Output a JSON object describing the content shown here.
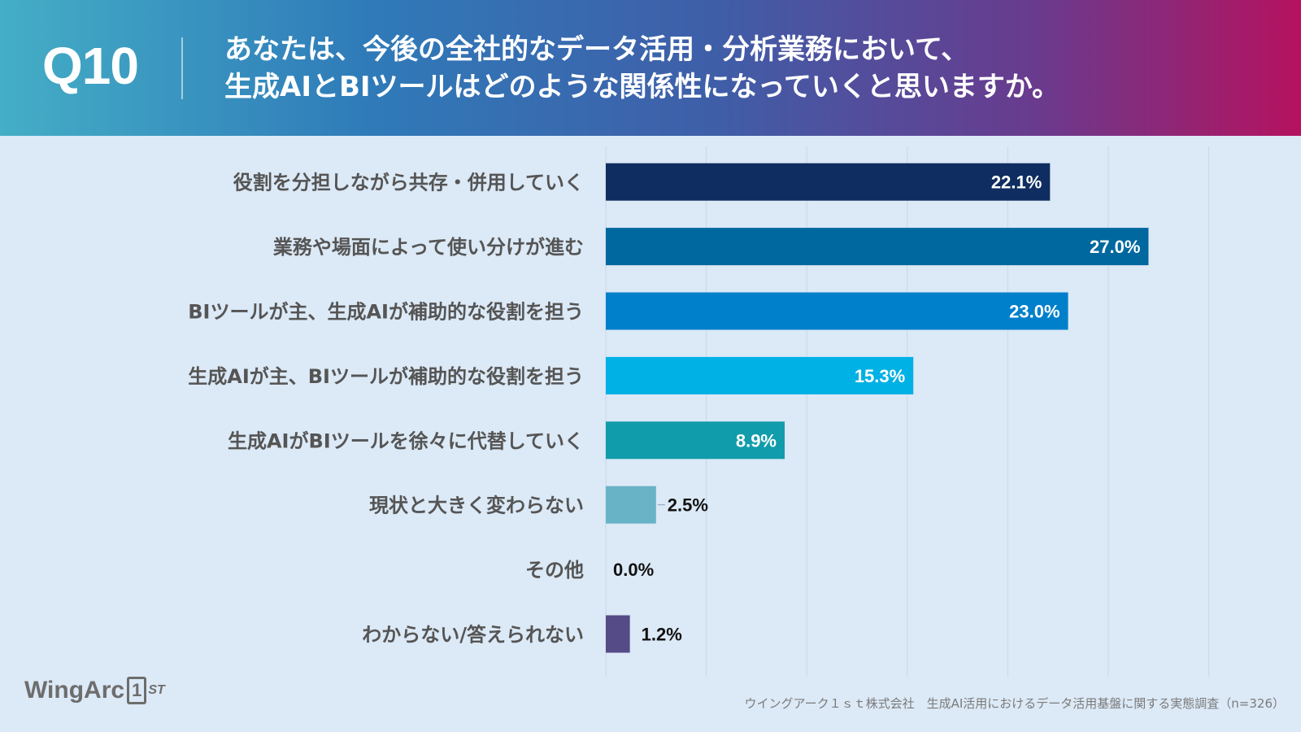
{
  "header": {
    "question_number": "Q10",
    "question_line1": "あなたは、今後の全社的なデータ活用・分析業務において、",
    "question_line2": "生成AIとBIツールはどのような関係性になっていくと思いますか。"
  },
  "chart_data": {
    "type": "bar",
    "orientation": "horizontal",
    "categories": [
      "役割を分担しながら共存・併用していく",
      "業務や場面によって使い分けが進む",
      "BIツールが主、生成AIが補助的な役割を担う",
      "生成AIが主、BIツールが補助的な役割を担う",
      "生成AIがBIツールを徐々に代替していく",
      "現状と大きく変わらない",
      "その他",
      "わからない/答えられない"
    ],
    "values": [
      22.1,
      27.0,
      23.0,
      15.3,
      8.9,
      2.5,
      0.0,
      1.2
    ],
    "value_labels": [
      "22.1%",
      "27.0%",
      "23.0%",
      "15.3%",
      "8.9%",
      "2.5%",
      "0.0%",
      "1.2%"
    ],
    "bar_colors": [
      "#0f2d60",
      "#00689f",
      "#0080cb",
      "#00b1e5",
      "#119cab",
      "#68b3c6",
      "#8a8a8a",
      "#554b87"
    ],
    "xlim": [
      0,
      30
    ],
    "grid": true,
    "legend": "none"
  },
  "footer": {
    "logo_text": "WingArc",
    "logo_number": "1",
    "logo_suffix": "ST",
    "source": "ウイングアーク１ｓｔ株式会社　生成AI活用におけるデータ活用基盤に関する実態調査（n=326）"
  }
}
